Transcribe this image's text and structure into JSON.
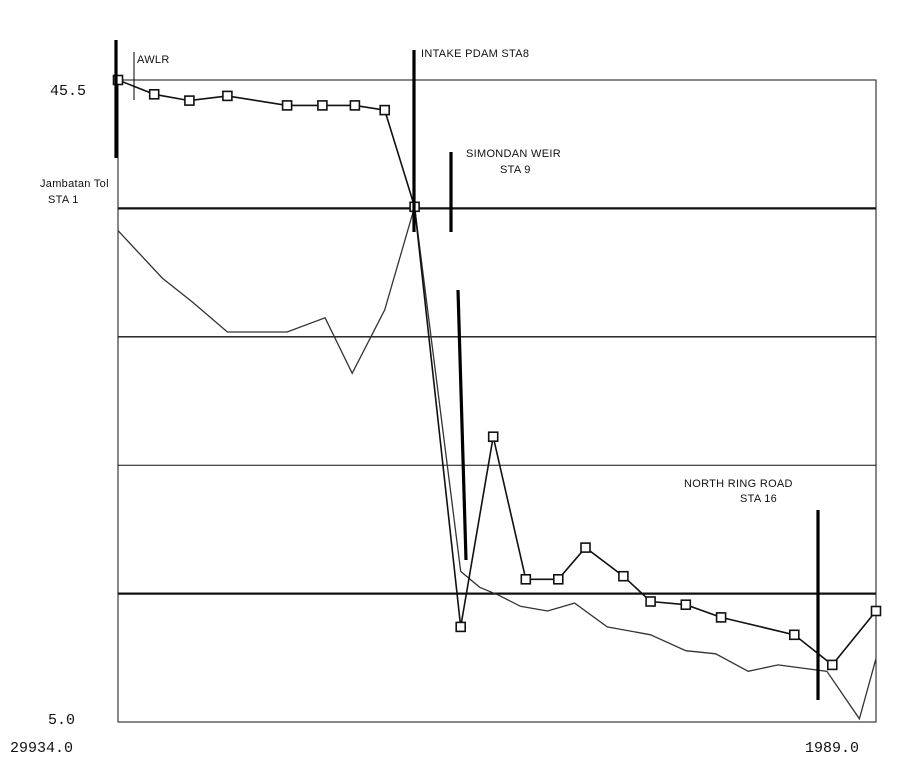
{
  "chart_data": {
    "type": "line",
    "title": "",
    "xlabel": "",
    "ylabel": "",
    "x_range": [
      29934.0,
      1989.0
    ],
    "y_range": [
      5.0,
      45.5
    ],
    "tick_labels": {
      "y_top": "45.5",
      "y_bottom": "5.0",
      "x_left": "29934.0",
      "x_right": "1989.0"
    },
    "grid": "horizontal",
    "colors": {
      "series_markers": "#111111",
      "series_plain": "#333333",
      "station_bar": "#000000"
    },
    "series": [
      {
        "marker": "square",
        "x": [
          29934.0,
          28600.0,
          27300.0,
          25900.0,
          23700.0,
          22400.0,
          21200.0,
          20100.0,
          19000.0,
          17300.0,
          16100.0,
          14900.0,
          13700.0,
          12700.0,
          11300.0,
          10300.0,
          9000.0,
          7700.0,
          5000.0,
          3600.0,
          1989.0
        ],
        "y": [
          45.5,
          44.6,
          44.2,
          44.5,
          43.9,
          43.9,
          43.9,
          43.6,
          37.5,
          11.0,
          23.0,
          14.0,
          14.0,
          16.0,
          14.2,
          12.6,
          12.4,
          11.6,
          10.5,
          8.6,
          12.0
        ]
      },
      {
        "marker": "none",
        "x": [
          29934.0,
          28300.0,
          27200.0,
          25900.0,
          23700.0,
          22300.0,
          21300.0,
          20100.0,
          19000.0,
          17300.0,
          16600.0,
          15900.0,
          15100.0,
          14100.0,
          13100.0,
          11900.0,
          10300.0,
          9000.0,
          7900.0,
          6700.0,
          5600.0,
          3800.0,
          2600.0,
          1989.0
        ],
        "y": [
          36.0,
          33.0,
          31.5,
          29.6,
          29.6,
          30.5,
          27.0,
          31.0,
          37.5,
          14.5,
          13.5,
          13.0,
          12.3,
          12.0,
          12.5,
          11.0,
          10.5,
          9.5,
          9.3,
          8.2,
          8.6,
          8.2,
          5.2,
          9.0
        ]
      }
    ],
    "stations": [
      {
        "label": "AWLR",
        "x": 29934.0
      },
      {
        "label": "Jambatan Tol STA 1",
        "x": 29934.0
      },
      {
        "label": "INTAKE PDAM STA 8",
        "x": 19700.0
      },
      {
        "label": "SIMONDAN WEIR STA 9",
        "x": 18600.0
      },
      {
        "label": "NORTH RING ROAD STA 16",
        "x": 3000.0
      }
    ],
    "annotations": {
      "awlr": "AWLR",
      "jambatan_line1": "Jambatan Tol",
      "jambatan_line2": "STA 1",
      "intake": "INTAKE PDAM STA8",
      "simondan_line1": "SIMONDAN WEIR",
      "simondan_line2": "STA 9",
      "northring_line1": "NORTH RING ROAD",
      "northring_line2": "STA 16"
    }
  }
}
